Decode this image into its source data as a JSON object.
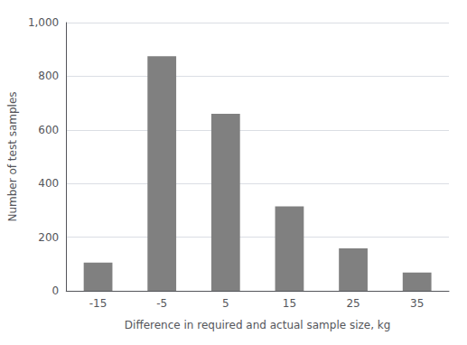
{
  "chart_data": {
    "type": "bar",
    "categories": [
      "-15",
      "-5",
      "5",
      "15",
      "25",
      "35"
    ],
    "values": [
      105,
      875,
      660,
      315,
      158,
      68
    ],
    "color": "#808080",
    "xlabel": "Difference in required and actual sample size, kg",
    "ylabel": "Number of test samples",
    "ylim": [
      0,
      1000
    ],
    "yticks": [
      0,
      200,
      400,
      600,
      800,
      1000
    ],
    "grid": true
  }
}
